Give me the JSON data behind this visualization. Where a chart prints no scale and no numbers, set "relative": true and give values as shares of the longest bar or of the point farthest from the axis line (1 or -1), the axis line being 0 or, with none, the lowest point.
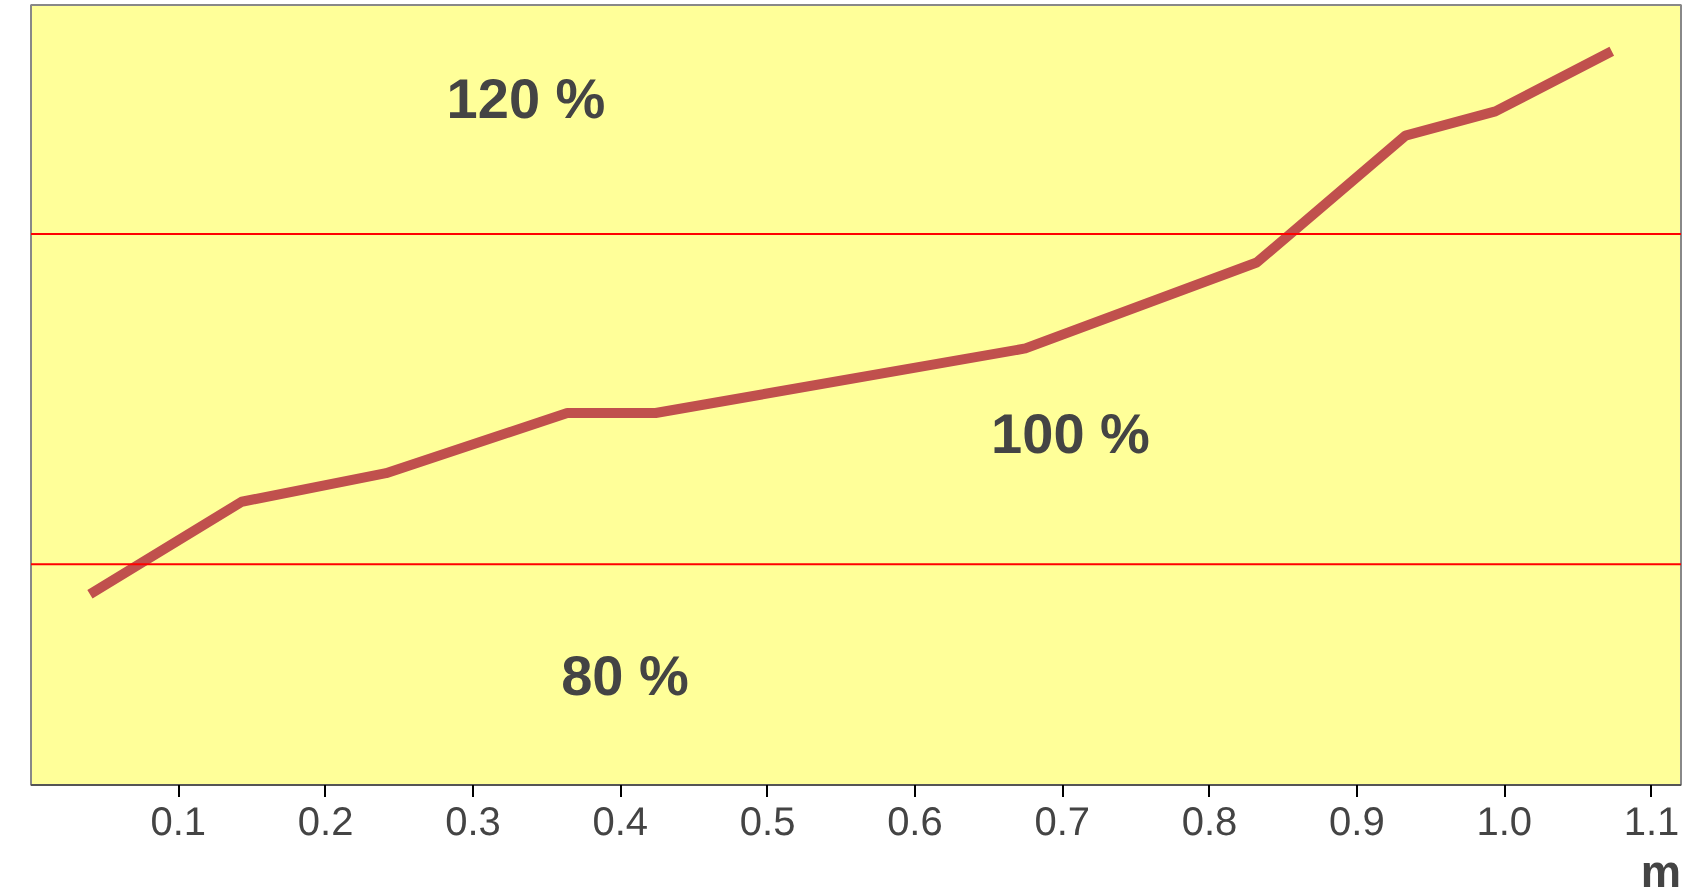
{
  "chart_data": {
    "type": "line",
    "relative": true,
    "xlabel": "m",
    "x": [
      0.04,
      0.143,
      0.241,
      0.364,
      0.424,
      0.675,
      0.832,
      0.933,
      0.994,
      1.073
    ],
    "series": [
      {
        "color": "#c0504d",
        "values": [
          0.26,
          0.386,
          0.425,
          0.507,
          0.507,
          0.595,
          0.712,
          0.885,
          0.918,
          1.0
        ]
      }
    ],
    "xlim": [
      0,
      1.12
    ],
    "xticks": [
      0.1,
      0.2,
      0.3,
      0.4,
      0.5,
      0.6,
      0.7,
      0.8,
      0.9,
      {
        "value": 1.0,
        "label": "1.0"
      },
      1.1
    ],
    "ref_lines": [
      {
        "axis": "y",
        "value": 0.301,
        "color": "#ff0000"
      },
      {
        "axis": "y",
        "value": 0.751,
        "color": "#ff0000"
      }
    ],
    "annotations": [
      "120 %",
      "100 %",
      "80 %"
    ],
    "grid": false,
    "marker": "none",
    "line_style": "solid"
  }
}
